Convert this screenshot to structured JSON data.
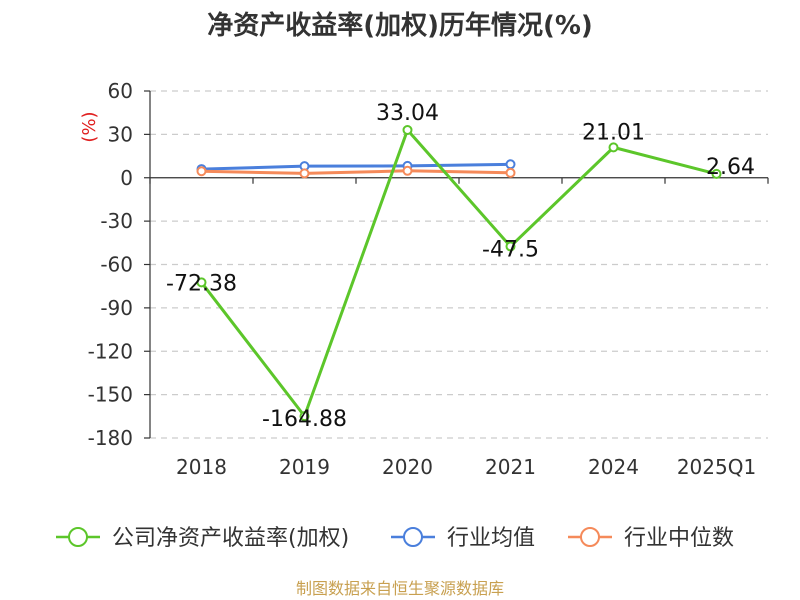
{
  "chart_data": {
    "type": "line",
    "title": "净资产收益率(加权)历年情况(%)",
    "ylabel": "(%)",
    "categories": [
      "2018",
      "2019",
      "2020",
      "2021",
      "2024",
      "2025Q1"
    ],
    "ylim": [
      -180,
      60
    ],
    "yticks": [
      60,
      30,
      0,
      -30,
      -60,
      -90,
      -120,
      -150,
      -180
    ],
    "grid": true,
    "legend_position": "bottom",
    "series": [
      {
        "name": "公司净资产收益率(加权)",
        "color": "#5cc62a",
        "values": [
          -72.38,
          -164.88,
          33.04,
          -47.5,
          21.01,
          2.64
        ],
        "labels": [
          "-72.38",
          "-164.88",
          "33.04",
          "-47.5",
          "21.01",
          "2.64"
        ]
      },
      {
        "name": "行业均值",
        "color": "#4a7fdc",
        "values": [
          6.0,
          8.0,
          8.2,
          9.3,
          null,
          null
        ]
      },
      {
        "name": "行业中位数",
        "color": "#f58a5a",
        "values": [
          4.5,
          3.0,
          4.8,
          3.4,
          null,
          null
        ]
      }
    ]
  },
  "source": "制图数据来自恒生聚源数据库"
}
